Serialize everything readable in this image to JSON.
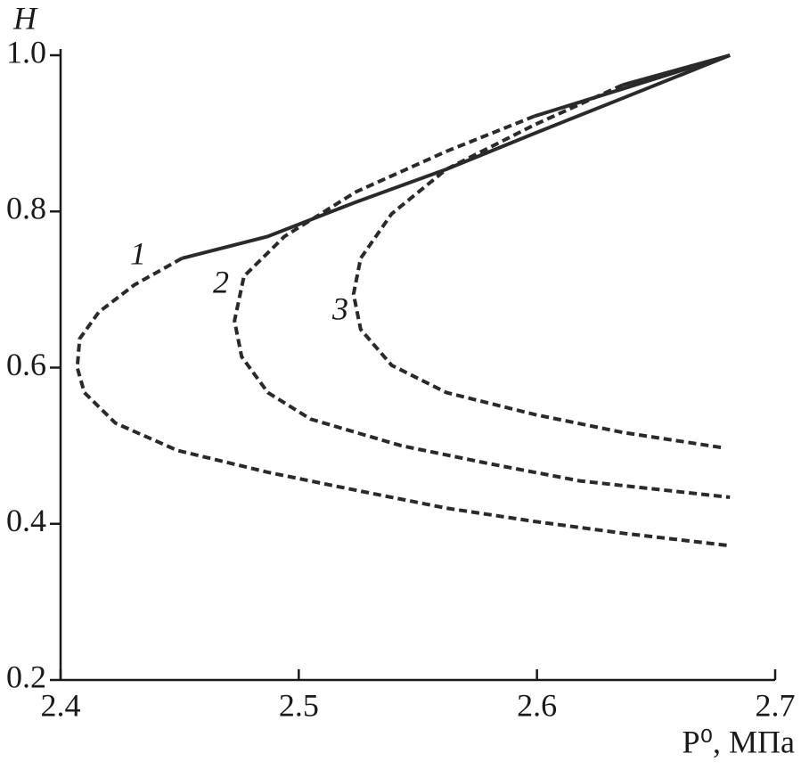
{
  "chart_data": {
    "type": "line",
    "ylabel": "H",
    "xlabel": "P⁰, МПа",
    "xlim": [
      2.4,
      2.7
    ],
    "xticks": [
      2.4,
      2.5,
      2.6,
      2.7
    ],
    "ylim": [
      0.2,
      1.0
    ],
    "yticks": [
      0.2,
      0.4,
      0.6,
      0.8,
      {
        "value": 1.0,
        "label": "1.0"
      }
    ],
    "series": [
      {
        "name": "1",
        "color": "#2a2a2a",
        "segments": [
          {
            "style": "solid",
            "x": [
              2.681,
              2.636,
              2.599,
              2.562,
              2.524,
              2.487,
              2.451
            ],
            "values": [
              1.0,
              0.945,
              0.9,
              0.854,
              0.812,
              0.768,
              0.74
            ]
          },
          {
            "style": "dashed",
            "x": [
              2.451,
              2.431,
              2.416,
              2.408,
              2.407,
              2.41,
              2.423,
              2.449,
              2.487,
              2.524,
              2.562,
              2.599,
              2.636,
              2.681
            ],
            "values": [
              0.74,
              0.706,
              0.671,
              0.637,
              0.6,
              0.568,
              0.529,
              0.494,
              0.466,
              0.443,
              0.42,
              0.403,
              0.388,
              0.372
            ]
          }
        ]
      },
      {
        "name": "2",
        "color": "#2a2a2a",
        "segments": [
          {
            "style": "solid",
            "x": [
              2.681,
              2.636,
              2.599
            ],
            "values": [
              1.0,
              0.957,
              0.922
            ]
          },
          {
            "style": "dashed",
            "x": [
              2.599,
              2.562,
              2.524,
              2.494,
              2.477,
              2.473,
              2.476,
              2.487,
              2.505,
              2.543,
              2.58,
              2.618,
              2.681
            ],
            "values": [
              0.922,
              0.877,
              0.825,
              0.768,
              0.717,
              0.66,
              0.614,
              0.568,
              0.534,
              0.5,
              0.477,
              0.455,
              0.434
            ]
          }
        ]
      },
      {
        "name": "3",
        "color": "#2a2a2a",
        "segments": [
          {
            "style": "solid",
            "x": [
              2.681,
              2.636
            ],
            "values": [
              1.0,
              0.962
            ]
          },
          {
            "style": "dashed",
            "x": [
              2.636,
              2.599,
              2.562,
              2.539,
              2.526,
              2.523,
              2.526,
              2.539,
              2.562,
              2.599,
              2.636,
              2.679
            ],
            "values": [
              0.962,
              0.911,
              0.854,
              0.797,
              0.74,
              0.694,
              0.649,
              0.603,
              0.568,
              0.54,
              0.517,
              0.497
            ]
          }
        ]
      }
    ]
  }
}
